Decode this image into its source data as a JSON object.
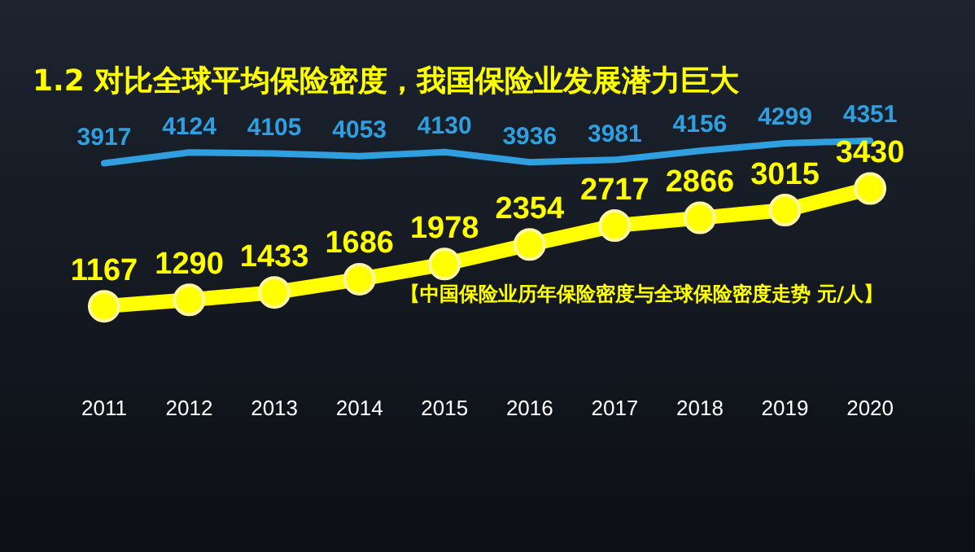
{
  "chart_data": {
    "type": "line",
    "title": "1.2 对比全球平均保险密度，我国保险业发展潜力巨大",
    "categories": [
      "2011",
      "2012",
      "2013",
      "2014",
      "2015",
      "2016",
      "2017",
      "2018",
      "2019",
      "2020"
    ],
    "series": [
      {
        "color": "#2f9fe0",
        "marker": "none",
        "values": [
          3917,
          4124,
          4105,
          4053,
          4130,
          3936,
          3981,
          4156,
          4299,
          4351
        ]
      },
      {
        "color": "#ffff00",
        "marker": "circle",
        "values": [
          1167,
          1290,
          1433,
          1686,
          1978,
          2354,
          2717,
          2866,
          3015,
          3430
        ]
      }
    ],
    "tick_labels": "x",
    "data_labels": true,
    "grid": false,
    "legend": false,
    "annotations": [
      "【中国保险业历年保险密度与全球保险密度走势 元/人】"
    ]
  }
}
